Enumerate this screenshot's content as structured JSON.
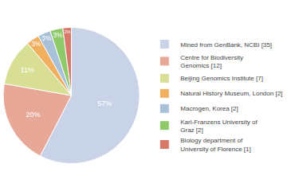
{
  "chart_data": {
    "type": "pie",
    "categories": [
      "Mined from GenBank, NCBI [35]",
      "Centre for Biodiversity\nGenomics [12]",
      "Beijing Genomics Institute [7]",
      "Natural History Museum, London [2]",
      "Macrogen, Korea [2]",
      "Karl-Franzens University of\nGraz [2]",
      "Biology department of\nUniversity of Florence [1]"
    ],
    "values": [
      57,
      20,
      11,
      3,
      3,
      3,
      2
    ],
    "value_labels": [
      "57%",
      "20%",
      "11%",
      "3%",
      "3%",
      "3%",
      "2%"
    ],
    "colors": [
      "#c9d3e8",
      "#e8a898",
      "#d8df94",
      "#f0b060",
      "#a8c0d8",
      "#8eca6a",
      "#d87868"
    ],
    "data_labels": true,
    "legend": "right"
  }
}
